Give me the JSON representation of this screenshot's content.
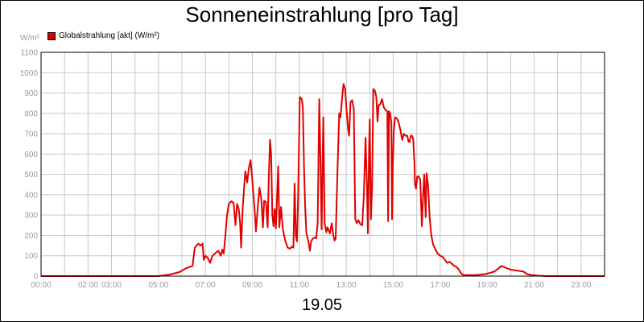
{
  "chart_data": {
    "type": "line",
    "title": "Sonneneinstrahlung [pro Tag]",
    "ylabel": "W/m²",
    "xlabel": "19.05",
    "legend": {
      "position": "top-left",
      "entries": [
        "Globalstrahlung [akt] (W/m²)"
      ]
    },
    "grid": true,
    "ylim": [
      0,
      1100
    ],
    "yticks": [
      0,
      100,
      200,
      300,
      400,
      500,
      600,
      700,
      800,
      900,
      1000,
      1100
    ],
    "xlim": [
      0,
      24
    ],
    "xtick_labels": [
      {
        "t": 0,
        "label": "00:00"
      },
      {
        "t": 2,
        "label": "02:00"
      },
      {
        "t": 3,
        "label": "03:00"
      },
      {
        "t": 5,
        "label": "05:00"
      },
      {
        "t": 7,
        "label": "07:00"
      },
      {
        "t": 9,
        "label": "09:00"
      },
      {
        "t": 11,
        "label": "11:00"
      },
      {
        "t": 13,
        "label": "13:00"
      },
      {
        "t": 15,
        "label": "15:00"
      },
      {
        "t": 17,
        "label": "17:00"
      },
      {
        "t": 19,
        "label": "19:00"
      },
      {
        "t": 21,
        "label": "21:00"
      },
      {
        "t": 23,
        "label": "23:00"
      }
    ],
    "series": [
      {
        "name": "Globalstrahlung [akt] (W/m²)",
        "color": "#e00000",
        "points": [
          [
            0.0,
            0
          ],
          [
            5.0,
            0
          ],
          [
            5.5,
            8
          ],
          [
            5.9,
            20
          ],
          [
            6.2,
            40
          ],
          [
            6.45,
            50
          ],
          [
            6.55,
            140
          ],
          [
            6.7,
            160
          ],
          [
            6.8,
            150
          ],
          [
            6.88,
            160
          ],
          [
            6.93,
            80
          ],
          [
            7.0,
            100
          ],
          [
            7.1,
            90
          ],
          [
            7.2,
            65
          ],
          [
            7.3,
            100
          ],
          [
            7.45,
            115
          ],
          [
            7.55,
            125
          ],
          [
            7.65,
            100
          ],
          [
            7.72,
            130
          ],
          [
            7.78,
            110
          ],
          [
            7.85,
            200
          ],
          [
            7.92,
            300
          ],
          [
            8.0,
            355
          ],
          [
            8.1,
            368
          ],
          [
            8.2,
            360
          ],
          [
            8.28,
            250
          ],
          [
            8.35,
            355
          ],
          [
            8.42,
            330
          ],
          [
            8.48,
            260
          ],
          [
            8.52,
            140
          ],
          [
            8.58,
            320
          ],
          [
            8.65,
            440
          ],
          [
            8.7,
            515
          ],
          [
            8.78,
            460
          ],
          [
            8.85,
            530
          ],
          [
            8.92,
            570
          ],
          [
            9.0,
            470
          ],
          [
            9.1,
            320
          ],
          [
            9.15,
            220
          ],
          [
            9.22,
            320
          ],
          [
            9.3,
            435
          ],
          [
            9.38,
            380
          ],
          [
            9.45,
            240
          ],
          [
            9.5,
            370
          ],
          [
            9.58,
            365
          ],
          [
            9.65,
            240
          ],
          [
            9.7,
            490
          ],
          [
            9.75,
            670
          ],
          [
            9.8,
            600
          ],
          [
            9.85,
            300
          ],
          [
            9.9,
            245
          ],
          [
            9.95,
            330
          ],
          [
            10.0,
            235
          ],
          [
            10.05,
            380
          ],
          [
            10.1,
            540
          ],
          [
            10.15,
            240
          ],
          [
            10.22,
            340
          ],
          [
            10.3,
            230
          ],
          [
            10.4,
            175
          ],
          [
            10.5,
            140
          ],
          [
            10.6,
            135
          ],
          [
            10.68,
            145
          ],
          [
            10.75,
            140
          ],
          [
            10.8,
            455
          ],
          [
            10.85,
            200
          ],
          [
            10.9,
            170
          ],
          [
            10.95,
            400
          ],
          [
            11.02,
            880
          ],
          [
            11.1,
            870
          ],
          [
            11.15,
            830
          ],
          [
            11.2,
            530
          ],
          [
            11.25,
            340
          ],
          [
            11.3,
            210
          ],
          [
            11.38,
            175
          ],
          [
            11.45,
            125
          ],
          [
            11.5,
            170
          ],
          [
            11.58,
            185
          ],
          [
            11.65,
            190
          ],
          [
            11.72,
            185
          ],
          [
            11.78,
            260
          ],
          [
            11.85,
            870
          ],
          [
            11.9,
            560
          ],
          [
            11.95,
            230
          ],
          [
            12.02,
            780
          ],
          [
            12.08,
            260
          ],
          [
            12.15,
            215
          ],
          [
            12.2,
            240
          ],
          [
            12.3,
            210
          ],
          [
            12.38,
            260
          ],
          [
            12.45,
            200
          ],
          [
            12.5,
            175
          ],
          [
            12.55,
            185
          ],
          [
            12.62,
            500
          ],
          [
            12.7,
            800
          ],
          [
            12.75,
            780
          ],
          [
            12.82,
            870
          ],
          [
            12.88,
            945
          ],
          [
            12.95,
            920
          ],
          [
            13.02,
            800
          ],
          [
            13.08,
            720
          ],
          [
            13.12,
            690
          ],
          [
            13.18,
            855
          ],
          [
            13.25,
            865
          ],
          [
            13.32,
            820
          ],
          [
            13.38,
            280
          ],
          [
            13.45,
            260
          ],
          [
            13.52,
            275
          ],
          [
            13.6,
            255
          ],
          [
            13.68,
            250
          ],
          [
            13.75,
            400
          ],
          [
            13.82,
            680
          ],
          [
            13.88,
            450
          ],
          [
            13.92,
            210
          ],
          [
            13.97,
            630
          ],
          [
            14.0,
            770
          ],
          [
            14.05,
            280
          ],
          [
            14.1,
            450
          ],
          [
            14.15,
            920
          ],
          [
            14.22,
            910
          ],
          [
            14.28,
            880
          ],
          [
            14.33,
            760
          ],
          [
            14.38,
            840
          ],
          [
            14.45,
            845
          ],
          [
            14.52,
            870
          ],
          [
            14.6,
            830
          ],
          [
            14.68,
            815
          ],
          [
            14.75,
            810
          ],
          [
            14.78,
            270
          ],
          [
            14.82,
            810
          ],
          [
            14.87,
            800
          ],
          [
            14.92,
            750
          ],
          [
            14.95,
            280
          ],
          [
            14.98,
            530
          ],
          [
            15.02,
            710
          ],
          [
            15.08,
            780
          ],
          [
            15.15,
            775
          ],
          [
            15.22,
            760
          ],
          [
            15.3,
            720
          ],
          [
            15.38,
            670
          ],
          [
            15.45,
            700
          ],
          [
            15.52,
            690
          ],
          [
            15.6,
            690
          ],
          [
            15.65,
            660
          ],
          [
            15.7,
            660
          ],
          [
            15.75,
            690
          ],
          [
            15.8,
            690
          ],
          [
            15.85,
            675
          ],
          [
            15.9,
            560
          ],
          [
            15.93,
            450
          ],
          [
            15.97,
            430
          ],
          [
            16.02,
            490
          ],
          [
            16.08,
            490
          ],
          [
            16.15,
            475
          ],
          [
            16.22,
            245
          ],
          [
            16.27,
            390
          ],
          [
            16.32,
            500
          ],
          [
            16.38,
            290
          ],
          [
            16.42,
            505
          ],
          [
            16.48,
            450
          ],
          [
            16.55,
            290
          ],
          [
            16.62,
            200
          ],
          [
            16.7,
            155
          ],
          [
            16.8,
            130
          ],
          [
            16.9,
            110
          ],
          [
            17.0,
            100
          ],
          [
            17.1,
            95
          ],
          [
            17.2,
            80
          ],
          [
            17.3,
            65
          ],
          [
            17.4,
            70
          ],
          [
            17.5,
            60
          ],
          [
            17.6,
            50
          ],
          [
            17.7,
            45
          ],
          [
            17.8,
            30
          ],
          [
            17.9,
            12
          ],
          [
            18.0,
            5
          ],
          [
            18.5,
            5
          ],
          [
            18.9,
            10
          ],
          [
            19.1,
            15
          ],
          [
            19.3,
            22
          ],
          [
            19.45,
            35
          ],
          [
            19.55,
            45
          ],
          [
            19.6,
            50
          ],
          [
            19.7,
            45
          ],
          [
            19.85,
            38
          ],
          [
            20.0,
            32
          ],
          [
            20.2,
            28
          ],
          [
            20.4,
            25
          ],
          [
            20.55,
            22
          ],
          [
            20.7,
            10
          ],
          [
            20.9,
            5
          ],
          [
            21.2,
            2
          ],
          [
            21.5,
            0
          ],
          [
            24.0,
            0
          ]
        ]
      }
    ]
  }
}
